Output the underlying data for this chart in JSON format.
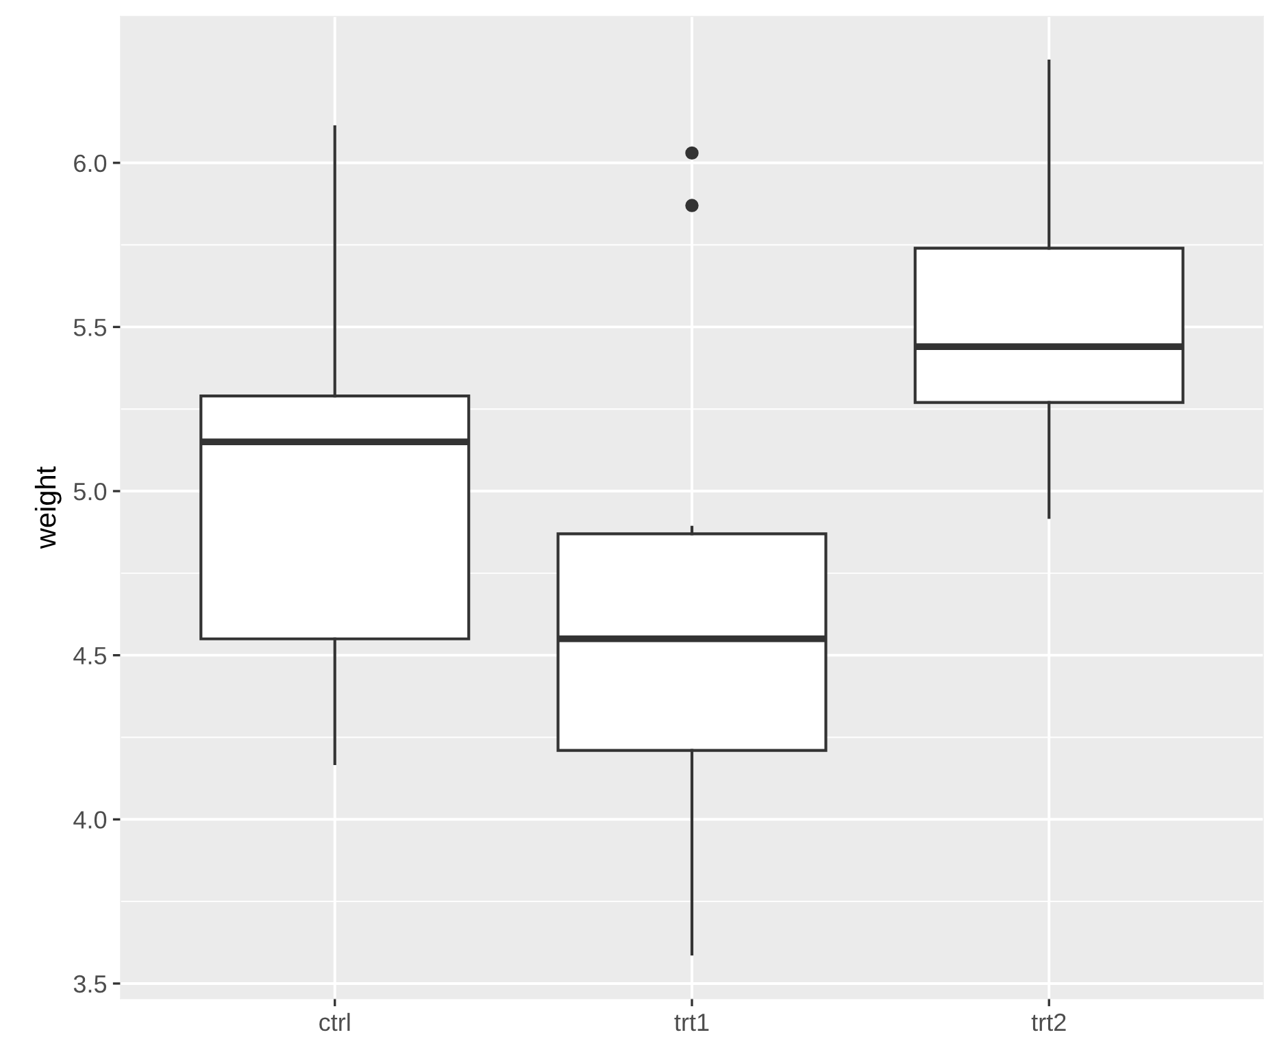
{
  "chart_data": {
    "type": "box",
    "ylabel": "weight",
    "categories": [
      "ctrl",
      "trt1",
      "trt2"
    ],
    "boxes": [
      {
        "low": 4.17,
        "q1": 4.55,
        "median": 5.15,
        "q3": 5.29,
        "high": 6.11
      },
      {
        "low": 3.59,
        "q1": 4.21,
        "median": 4.55,
        "q3": 4.87,
        "high": 4.89,
        "outliers": [
          5.87,
          6.03
        ]
      },
      {
        "low": 4.92,
        "q1": 5.27,
        "median": 5.44,
        "q3": 5.74,
        "high": 6.31
      }
    ],
    "ylim": [
      3.454,
      6.446
    ],
    "yticks": [
      3.5,
      {
        "value": 4,
        "label": "4.0"
      },
      4.5,
      {
        "value": 5,
        "label": "5.0"
      },
      5.5,
      {
        "value": 6,
        "label": "6.0"
      }
    ],
    "grid": true
  }
}
